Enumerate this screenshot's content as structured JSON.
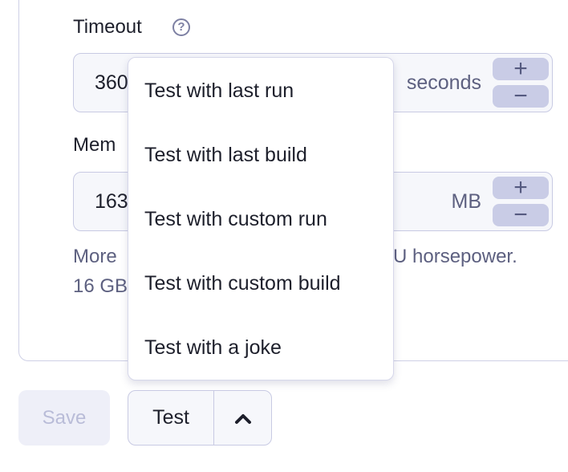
{
  "timeout": {
    "label": "Timeout",
    "help_icon": "question-circle-icon",
    "value": "360",
    "unit": "seconds",
    "increment": "+",
    "decrement": "−"
  },
  "memory": {
    "label": "Mem",
    "value": "163",
    "unit": "MB",
    "increment": "+",
    "decrement": "−",
    "hint_line1_start": "More",
    "hint_line1_end": "U horsepower.",
    "hint_line2_start": "16 GB"
  },
  "menu": {
    "items": [
      "Test with last run",
      "Test with last build",
      "Test with custom run",
      "Test with custom build",
      "Test with a joke"
    ]
  },
  "actions": {
    "save_label": "Save",
    "test_label": "Test",
    "toggle_icon": "chevron-up-icon"
  }
}
